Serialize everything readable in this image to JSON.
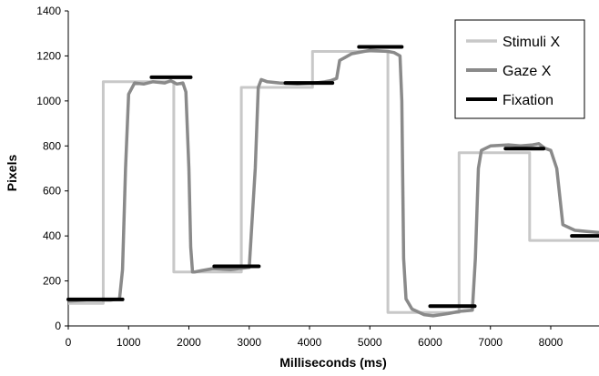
{
  "chart_data": {
    "type": "line",
    "xlabel": "Milliseconds (ms)",
    "ylabel": "Pixels",
    "xlim": [
      0,
      8800
    ],
    "ylim": [
      0,
      1400
    ],
    "x_ticks": [
      0,
      1000,
      2000,
      3000,
      4000,
      5000,
      6000,
      7000,
      8000
    ],
    "y_ticks": [
      0,
      200,
      400,
      600,
      800,
      1000,
      1200,
      1400
    ],
    "grid": false,
    "legend_position": "top-right",
    "series": [
      {
        "name": "Stimuli X",
        "color": "#c8c8c8",
        "style": "step",
        "x": [
          0,
          580,
          580,
          1750,
          1750,
          2870,
          2870,
          4050,
          4050,
          5300,
          5300,
          6480,
          6480,
          7650,
          7650,
          8800
        ],
        "y": [
          100,
          100,
          1085,
          1085,
          240,
          240,
          1060,
          1060,
          1220,
          1220,
          60,
          60,
          770,
          770,
          380,
          380
        ]
      },
      {
        "name": "Gaze X",
        "color": "#8a8a8a",
        "style": "line",
        "x": [
          0,
          300,
          700,
          850,
          900,
          950,
          1000,
          1100,
          1250,
          1400,
          1600,
          1700,
          1800,
          1900,
          1950,
          2000,
          2030,
          2060,
          2100,
          2200,
          2400,
          2700,
          3000,
          3100,
          3150,
          3200,
          3300,
          3500,
          3800,
          4100,
          4250,
          4350,
          4450,
          4500,
          4700,
          5000,
          5300,
          5400,
          5500,
          5530,
          5560,
          5600,
          5700,
          5900,
          6050,
          6300,
          6500,
          6700,
          6750,
          6800,
          6850,
          7000,
          7300,
          7500,
          7700,
          7800,
          7900,
          8000,
          8100,
          8200,
          8400,
          8600,
          8800
        ],
        "y": [
          110,
          115,
          115,
          120,
          250,
          700,
          1030,
          1080,
          1075,
          1085,
          1080,
          1090,
          1075,
          1080,
          1040,
          700,
          350,
          240,
          240,
          245,
          255,
          250,
          260,
          700,
          1060,
          1095,
          1085,
          1080,
          1075,
          1080,
          1085,
          1090,
          1100,
          1180,
          1210,
          1225,
          1220,
          1215,
          1200,
          1000,
          300,
          120,
          75,
          50,
          45,
          55,
          65,
          70,
          300,
          700,
          780,
          800,
          805,
          800,
          805,
          810,
          790,
          780,
          700,
          450,
          425,
          420,
          415
        ]
      },
      {
        "name": "Fixation",
        "color": "#000000",
        "style": "segments",
        "segments": [
          {
            "x": [
              0,
              900
            ],
            "y": [
              118,
              118
            ]
          },
          {
            "x": [
              1380,
              2030
            ],
            "y": [
              1105,
              1105
            ]
          },
          {
            "x": [
              2420,
              3160
            ],
            "y": [
              265,
              265
            ]
          },
          {
            "x": [
              3600,
              4380
            ],
            "y": [
              1080,
              1080
            ]
          },
          {
            "x": [
              4820,
              5530
            ],
            "y": [
              1240,
              1240
            ]
          },
          {
            "x": [
              6000,
              6740
            ],
            "y": [
              88,
              88
            ]
          },
          {
            "x": [
              7250,
              7880
            ],
            "y": [
              788,
              788
            ]
          },
          {
            "x": [
              8350,
              8800
            ],
            "y": [
              400,
              400
            ]
          }
        ]
      }
    ]
  }
}
